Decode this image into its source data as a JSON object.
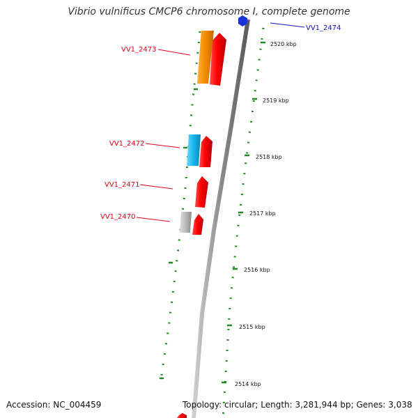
{
  "title": "Vibrio vulnificus CMCP6 chromosome I, complete genome",
  "accession": "Accession: NC_004459",
  "summary": "Topology: circular; Length: 3,281,944 bp; Genes: 3,038",
  "colors": {
    "backbone": "#8c8c8c",
    "forward_gene": "#e8001c",
    "orange_gene": "#f28c00",
    "cyan_gene": "#14b6ee",
    "grey_gene": "#b9b9b9",
    "blue_gene": "#1a33d9",
    "dash": "#1f8a1f",
    "label_red": "#e0001a",
    "label_blue": "#1010c8"
  },
  "map": {
    "scale_labels": [
      "2520 kbp",
      "2519 kbp",
      "2518 kbp",
      "2517 kbp",
      "2516 kbp",
      "2515 kbp",
      "2514 kbp"
    ],
    "gene_labels": [
      {
        "text": "VV1_2474",
        "color": "blue"
      },
      {
        "text": "VV1_2473",
        "color": "red"
      },
      {
        "text": "VV1_2472",
        "color": "red"
      },
      {
        "text": "VV1_2471",
        "color": "red"
      },
      {
        "text": "VV1_2470",
        "color": "red"
      }
    ]
  }
}
